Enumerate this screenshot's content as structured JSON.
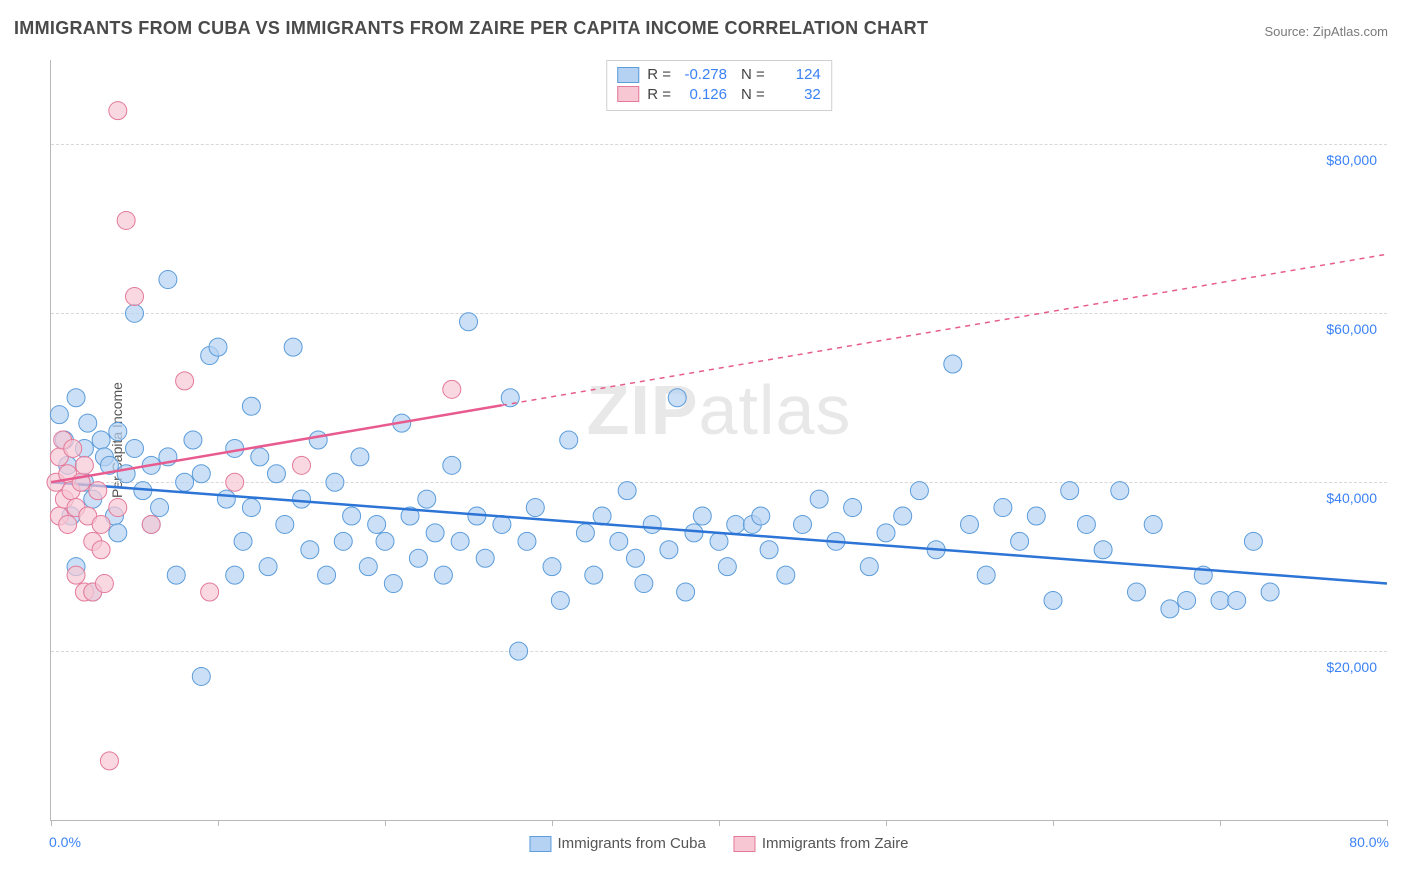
{
  "title": "IMMIGRANTS FROM CUBA VS IMMIGRANTS FROM ZAIRE PER CAPITA INCOME CORRELATION CHART",
  "source_label": "Source: ZipAtlas.com",
  "watermark": "ZIPatlas",
  "chart": {
    "type": "scatter",
    "ylabel": "Per Capita Income",
    "background_color": "#ffffff",
    "grid_color": "#d8d8d8",
    "axis_color": "#b8b8b8",
    "label_fontsize": 14,
    "xlim": [
      0,
      80
    ],
    "xlim_labels": [
      "0.0%",
      "80.0%"
    ],
    "xtick_positions_pct": [
      0,
      12.5,
      25,
      37.5,
      50,
      62.5,
      75,
      87.5,
      100
    ],
    "ylim": [
      0,
      90000
    ],
    "yticks": [
      {
        "value": 20000,
        "label": "$20,000"
      },
      {
        "value": 40000,
        "label": "$40,000"
      },
      {
        "value": 60000,
        "label": "$60,000"
      },
      {
        "value": 80000,
        "label": "$80,000"
      }
    ],
    "ytick_color": "#3b82f6",
    "stats_box": {
      "rows": [
        {
          "swatch_fill": "#b5d2f2",
          "swatch_stroke": "#5c9ddb",
          "r_label": "R =",
          "r_value": "-0.278",
          "n_label": "N =",
          "n_value": "124"
        },
        {
          "swatch_fill": "#f7c7d4",
          "swatch_stroke": "#e47a9a",
          "r_label": "R =",
          "r_value": "0.126",
          "n_label": "N =",
          "n_value": "32"
        }
      ]
    },
    "legend": [
      {
        "swatch_fill": "#b5d2f2",
        "swatch_stroke": "#5c9ddb",
        "label": "Immigrants from Cuba"
      },
      {
        "swatch_fill": "#f7c7d4",
        "swatch_stroke": "#e47a9a",
        "label": "Immigrants from Zaire"
      }
    ],
    "series": [
      {
        "name": "cuba",
        "marker_fill": "#b5d2f2",
        "marker_stroke": "#5c9ddb",
        "marker_fill_opacity": 0.7,
        "marker_radius": 9,
        "points": [
          [
            0.5,
            48000
          ],
          [
            0.8,
            45000
          ],
          [
            1.0,
            42000
          ],
          [
            1.2,
            36000
          ],
          [
            1.5,
            50000
          ],
          [
            1.5,
            30000
          ],
          [
            2.0,
            40000
          ],
          [
            2.0,
            44000
          ],
          [
            2.2,
            47000
          ],
          [
            2.5,
            38000
          ],
          [
            2.5,
            27000
          ],
          [
            3.0,
            45000
          ],
          [
            3.2,
            43000
          ],
          [
            3.5,
            42000
          ],
          [
            3.8,
            36000
          ],
          [
            4.0,
            34000
          ],
          [
            4.0,
            46000
          ],
          [
            4.5,
            41000
          ],
          [
            5.0,
            44000
          ],
          [
            5.0,
            60000
          ],
          [
            5.5,
            39000
          ],
          [
            6.0,
            42000
          ],
          [
            6.0,
            35000
          ],
          [
            6.5,
            37000
          ],
          [
            7.0,
            64000
          ],
          [
            7.0,
            43000
          ],
          [
            7.5,
            29000
          ],
          [
            8.0,
            40000
          ],
          [
            8.5,
            45000
          ],
          [
            9.0,
            41000
          ],
          [
            9.0,
            17000
          ],
          [
            9.5,
            55000
          ],
          [
            10.0,
            56000
          ],
          [
            10.5,
            38000
          ],
          [
            11.0,
            29000
          ],
          [
            11.0,
            44000
          ],
          [
            11.5,
            33000
          ],
          [
            12.0,
            37000
          ],
          [
            12.0,
            49000
          ],
          [
            12.5,
            43000
          ],
          [
            13.0,
            30000
          ],
          [
            13.5,
            41000
          ],
          [
            14.0,
            35000
          ],
          [
            14.5,
            56000
          ],
          [
            15.0,
            38000
          ],
          [
            15.5,
            32000
          ],
          [
            16.0,
            45000
          ],
          [
            16.5,
            29000
          ],
          [
            17.0,
            40000
          ],
          [
            17.5,
            33000
          ],
          [
            18.0,
            36000
          ],
          [
            18.5,
            43000
          ],
          [
            19.0,
            30000
          ],
          [
            19.5,
            35000
          ],
          [
            20.0,
            33000
          ],
          [
            20.5,
            28000
          ],
          [
            21.0,
            47000
          ],
          [
            21.5,
            36000
          ],
          [
            22.0,
            31000
          ],
          [
            22.5,
            38000
          ],
          [
            23.0,
            34000
          ],
          [
            23.5,
            29000
          ],
          [
            24.0,
            42000
          ],
          [
            24.5,
            33000
          ],
          [
            25.0,
            59000
          ],
          [
            25.5,
            36000
          ],
          [
            26.0,
            31000
          ],
          [
            27.0,
            35000
          ],
          [
            27.5,
            50000
          ],
          [
            28.0,
            20000
          ],
          [
            28.5,
            33000
          ],
          [
            29.0,
            37000
          ],
          [
            30.0,
            30000
          ],
          [
            30.5,
            26000
          ],
          [
            31.0,
            45000
          ],
          [
            32.0,
            34000
          ],
          [
            32.5,
            29000
          ],
          [
            33.0,
            36000
          ],
          [
            34.0,
            33000
          ],
          [
            34.5,
            39000
          ],
          [
            35.0,
            31000
          ],
          [
            35.5,
            28000
          ],
          [
            36.0,
            35000
          ],
          [
            37.0,
            32000
          ],
          [
            37.5,
            50000
          ],
          [
            38.0,
            27000
          ],
          [
            38.5,
            34000
          ],
          [
            39.0,
            36000
          ],
          [
            40.0,
            33000
          ],
          [
            40.5,
            30000
          ],
          [
            41.0,
            35000
          ],
          [
            42.0,
            35000
          ],
          [
            42.5,
            36000
          ],
          [
            43.0,
            32000
          ],
          [
            44.0,
            29000
          ],
          [
            45.0,
            35000
          ],
          [
            46.0,
            38000
          ],
          [
            47.0,
            33000
          ],
          [
            48.0,
            37000
          ],
          [
            49.0,
            30000
          ],
          [
            50.0,
            34000
          ],
          [
            51.0,
            36000
          ],
          [
            52.0,
            39000
          ],
          [
            53.0,
            32000
          ],
          [
            54.0,
            54000
          ],
          [
            55.0,
            35000
          ],
          [
            56.0,
            29000
          ],
          [
            57.0,
            37000
          ],
          [
            58.0,
            33000
          ],
          [
            59.0,
            36000
          ],
          [
            60.0,
            26000
          ],
          [
            61.0,
            39000
          ],
          [
            62.0,
            35000
          ],
          [
            63.0,
            32000
          ],
          [
            64.0,
            39000
          ],
          [
            65.0,
            27000
          ],
          [
            66.0,
            35000
          ],
          [
            67.0,
            25000
          ],
          [
            68.0,
            26000
          ],
          [
            69.0,
            29000
          ],
          [
            70.0,
            26000
          ],
          [
            71.0,
            26000
          ],
          [
            72.0,
            33000
          ],
          [
            73.0,
            27000
          ]
        ],
        "trend": {
          "stroke": "#2c74d6",
          "width": 2.5,
          "x1": 0,
          "y1": 40000,
          "x2": 80,
          "y2": 28000,
          "solid_until_x": 80
        }
      },
      {
        "name": "zaire",
        "marker_fill": "#f7c7d4",
        "marker_stroke": "#e47a9a",
        "marker_fill_opacity": 0.7,
        "marker_radius": 9,
        "points": [
          [
            0.3,
            40000
          ],
          [
            0.5,
            43000
          ],
          [
            0.5,
            36000
          ],
          [
            0.7,
            45000
          ],
          [
            0.8,
            38000
          ],
          [
            1.0,
            41000
          ],
          [
            1.0,
            35000
          ],
          [
            1.2,
            39000
          ],
          [
            1.3,
            44000
          ],
          [
            1.5,
            37000
          ],
          [
            1.5,
            29000
          ],
          [
            1.8,
            40000
          ],
          [
            2.0,
            42000
          ],
          [
            2.0,
            27000
          ],
          [
            2.2,
            36000
          ],
          [
            2.5,
            33000
          ],
          [
            2.5,
            27000
          ],
          [
            2.8,
            39000
          ],
          [
            3.0,
            32000
          ],
          [
            3.0,
            35000
          ],
          [
            3.2,
            28000
          ],
          [
            3.5,
            7000
          ],
          [
            4.0,
            84000
          ],
          [
            4.0,
            37000
          ],
          [
            4.5,
            71000
          ],
          [
            5.0,
            62000
          ],
          [
            6.0,
            35000
          ],
          [
            8.0,
            52000
          ],
          [
            9.5,
            27000
          ],
          [
            11.0,
            40000
          ],
          [
            15.0,
            42000
          ],
          [
            24.0,
            51000
          ]
        ],
        "trend": {
          "stroke": "#e85b8f",
          "width": 2.5,
          "x1": 0,
          "y1": 40000,
          "x2": 80,
          "y2": 67000,
          "solid_until_x": 27
        }
      }
    ]
  }
}
